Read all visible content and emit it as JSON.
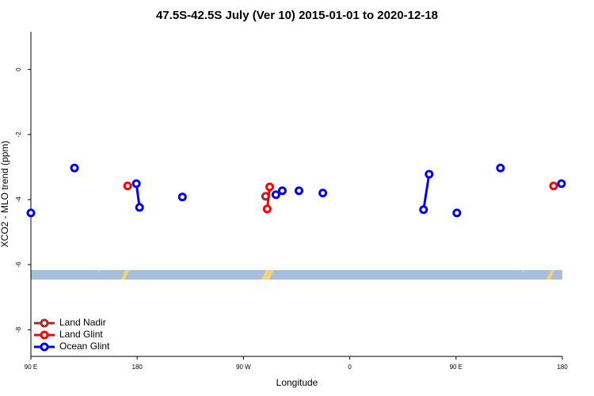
{
  "chart_data": {
    "type": "line",
    "title": "47.5S-42.5S July (Ver 10)   2015-01-01 to 2020-12-18",
    "x_label": "Longitude",
    "y_label": "XCO2 - MLO trend (ppm)",
    "xlim": [
      90,
      540
    ],
    "xticks": [
      {
        "value": 90,
        "label": "90 E"
      },
      180,
      {
        "value": 270,
        "label": "90 W"
      },
      {
        "value": 360,
        "label": "0"
      },
      {
        "value": 450,
        "label": "90 E"
      },
      {
        "value": 540,
        "label": "180"
      }
    ],
    "ylim": [
      -8.82,
      1.16
    ],
    "yticks": [
      0,
      -2,
      -4,
      -6,
      -8
    ],
    "legend": "bottom-left",
    "series": [
      {
        "name": "Land Nadir",
        "color": "#a52a2a",
        "x": [
          288.8
        ],
        "values": [
          -3.9
        ]
      },
      {
        "name": "Land Glint",
        "color": "#ff0000",
        "x": [
          171.9,
          null,
          292.2,
          290.1,
          null,
          532.6
        ],
        "values": [
          -3.58,
          null,
          -3.61,
          -4.29,
          null,
          -3.58
        ]
      },
      {
        "name": "Ocean Glint",
        "color": "#0000ff",
        "x": [
          90,
          null,
          126.9,
          null,
          179.3,
          182.0,
          null,
          218.3,
          null,
          297.5,
          null,
          302.9,
          null,
          317.0,
          null,
          337.2,
          null,
          422.5,
          427.2,
          null,
          450.7,
          null,
          487.6,
          null,
          539.3
        ],
        "values": [
          -4.41,
          null,
          -3.03,
          null,
          -3.51,
          -4.24,
          null,
          -3.92,
          null,
          -3.85,
          null,
          -3.73,
          null,
          -3.73,
          null,
          -3.8,
          null,
          -4.31,
          -3.22,
          null,
          -4.41,
          null,
          -3.03,
          null,
          -3.51
        ]
      }
    ]
  }
}
